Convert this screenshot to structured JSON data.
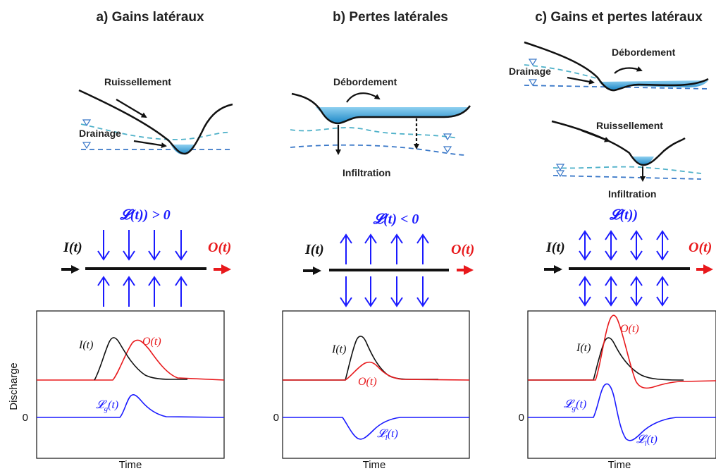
{
  "panels": [
    {
      "title": "a) Gains latéraux",
      "sketch_labels": [
        "Ruissellement",
        "Drainage"
      ],
      "flux_label": "𝓛(t)) > 0",
      "inflow_label": "I(t)",
      "outflow_label": "O(t)",
      "hydro_labels": {
        "inflow": "I(t)",
        "outflow": "O(t)",
        "lateral_main": "𝓛",
        "lateral_sub": "g",
        "lateral_rest": "(t)"
      }
    },
    {
      "title": "b) Pertes latérales",
      "sketch_labels": [
        "Débordement",
        "Infiltration"
      ],
      "flux_label": "𝓛(t) < 0",
      "inflow_label": "I(t)",
      "outflow_label": "O(t)",
      "hydro_labels": {
        "inflow": "I(t)",
        "outflow": "O(t)",
        "lateral_main": "𝓛",
        "lateral_sub": "l",
        "lateral_rest": "(t)"
      }
    },
    {
      "title": "c) Gains et pertes latéraux",
      "sketch_labels": [
        "Débordement",
        "Drainage",
        "Ruissellement",
        "Infiltration"
      ],
      "flux_label": "𝓛(t))",
      "inflow_label": "I(t)",
      "outflow_label": "O(t)",
      "hydro_labels": {
        "inflow": "I(t)",
        "outflow": "O(t)",
        "lateral_g_main": "𝓛",
        "lateral_g_sub": "g",
        "lateral_g_rest": "(t)",
        "lateral_l_main": "𝓛",
        "lateral_l_sub": "l",
        "lateral_l_rest": "(t)"
      }
    }
  ],
  "axes": {
    "ylabel": "Discharge",
    "xlabel": "Time",
    "zero_label": "0"
  },
  "colors": {
    "inflow": "#000000",
    "outflow": "#e8191c",
    "lateral": "#1a1aff",
    "water": "#3b9ed6",
    "groundwater": "#4a9fd0"
  }
}
